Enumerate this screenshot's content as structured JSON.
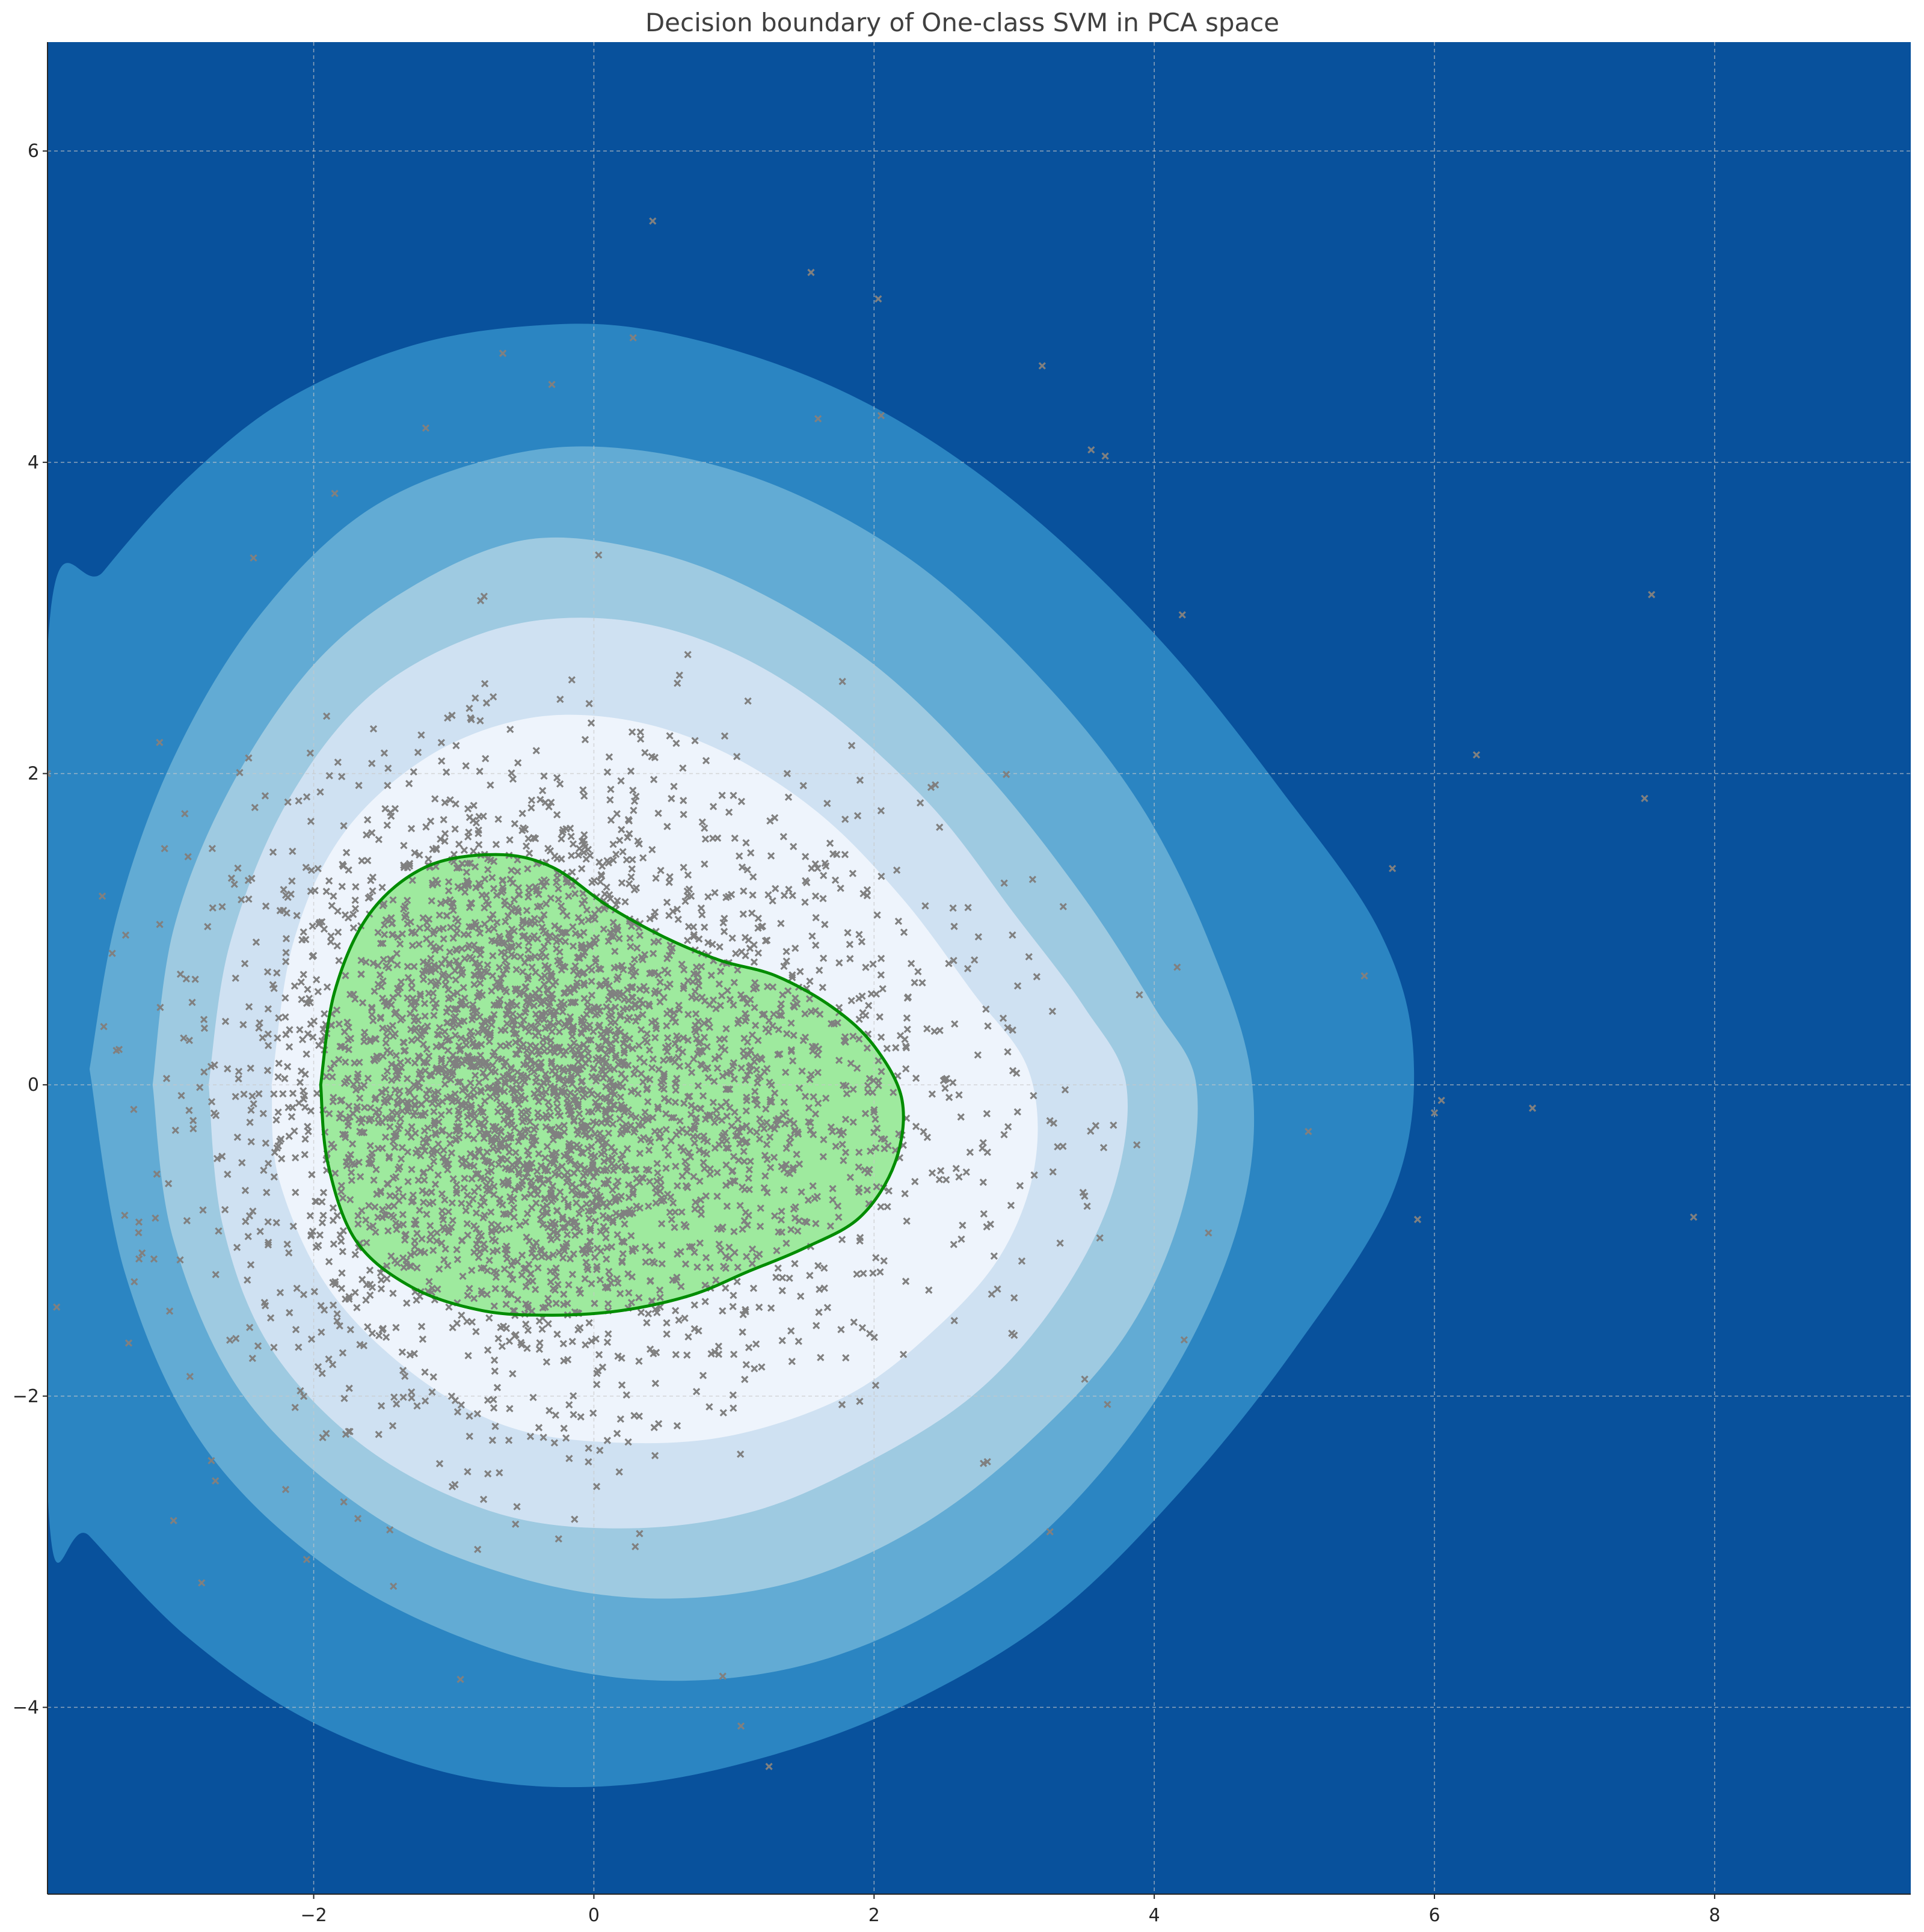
{
  "chart_data": {
    "type": "contour",
    "title": "Decision boundary of One-class SVM in PCA space",
    "xlabel": "",
    "ylabel": "",
    "xlim": [
      -3.9,
      9.4
    ],
    "ylim": [
      -5.2,
      6.7
    ],
    "xticks": [
      -2,
      0,
      2,
      4,
      6,
      8
    ],
    "yticks": [
      -4,
      -2,
      0,
      2,
      4,
      6
    ],
    "xtick_labels": [
      "−2",
      "0",
      "2",
      "4",
      "6",
      "8"
    ],
    "ytick_labels": [
      "−4",
      "−2",
      "0",
      "2",
      "4",
      "6"
    ],
    "grid": true,
    "legend": "none",
    "colors": {
      "background": "#08519c",
      "levels": [
        "#2b85c2",
        "#62abd4",
        "#9ecae1",
        "#cfe1f2",
        "#eef4fc"
      ],
      "inlier_fill": "#9eea9e",
      "boundary_line": "#008c00",
      "points": "#808080",
      "grid": "#c8c8c8"
    },
    "contour_levels": [
      {
        "level": 1,
        "x": [
          -3.9,
          -3.5,
          -2.9,
          -2.2,
          -1.3,
          -0.4,
          0.4,
          1.4,
          2.3,
          3.2,
          4.1,
          4.9,
          5.6,
          5.85,
          5.7,
          5.0,
          4.2,
          3.3,
          2.3,
          1.3,
          0.2,
          -0.9,
          -2.0,
          -2.9,
          -3.6,
          -3.9
        ],
        "y": [
          2.8,
          3.3,
          3.9,
          4.4,
          4.75,
          4.88,
          4.85,
          4.6,
          4.2,
          3.6,
          2.8,
          1.9,
          1.0,
          0.2,
          -0.7,
          -1.7,
          -2.6,
          -3.4,
          -3.95,
          -4.3,
          -4.5,
          -4.45,
          -4.1,
          -3.55,
          -2.9,
          -2.6
        ]
      },
      {
        "level": 2,
        "x": [
          -3.6,
          -3.4,
          -3.0,
          -2.4,
          -1.6,
          -0.6,
          0.3,
          1.3,
          2.3,
          3.2,
          3.9,
          4.4,
          4.7,
          4.6,
          4.1,
          3.3,
          2.4,
          1.4,
          0.3,
          -0.8,
          -1.9,
          -2.8,
          -3.35,
          -3.6
        ],
        "y": [
          0.1,
          1.1,
          2.1,
          3.0,
          3.7,
          4.05,
          4.08,
          3.85,
          3.35,
          2.6,
          1.8,
          0.9,
          0.0,
          -0.9,
          -1.9,
          -2.8,
          -3.4,
          -3.75,
          -3.82,
          -3.6,
          -3.1,
          -2.3,
          -1.2,
          0.1
        ]
      },
      {
        "level": 3,
        "x": [
          -3.15,
          -3.0,
          -2.6,
          -2.0,
          -1.3,
          -0.5,
          0.3,
          1.1,
          2.0,
          2.8,
          3.5,
          4.0,
          4.3,
          4.2,
          3.8,
          3.1,
          2.3,
          1.4,
          0.4,
          -0.6,
          -1.6,
          -2.5,
          -3.0,
          -3.15
        ],
        "y": [
          0.0,
          1.0,
          1.9,
          2.7,
          3.2,
          3.5,
          3.45,
          3.2,
          2.7,
          2.0,
          1.2,
          0.5,
          0.0,
          -0.8,
          -1.6,
          -2.3,
          -2.85,
          -3.2,
          -3.3,
          -3.15,
          -2.75,
          -2.0,
          -1.0,
          0.0
        ]
      },
      {
        "level": 4,
        "x": [
          -2.75,
          -2.6,
          -2.2,
          -1.6,
          -0.8,
          0.0,
          0.8,
          1.6,
          2.4,
          3.0,
          3.5,
          3.8,
          3.7,
          3.3,
          2.7,
          1.9,
          1.1,
          0.2,
          -0.7,
          -1.6,
          -2.3,
          -2.65,
          -2.75
        ],
        "y": [
          0.0,
          0.9,
          1.8,
          2.5,
          2.9,
          3.0,
          2.85,
          2.45,
          1.8,
          1.1,
          0.5,
          0.0,
          -0.7,
          -1.4,
          -2.0,
          -2.45,
          -2.75,
          -2.85,
          -2.75,
          -2.35,
          -1.7,
          -0.9,
          0.0
        ]
      },
      {
        "level": 5,
        "x": [
          -2.3,
          -2.15,
          -1.8,
          -1.2,
          -0.5,
          0.2,
          0.9,
          1.6,
          2.2,
          2.7,
          3.1,
          3.15,
          2.9,
          2.4,
          1.8,
          1.0,
          0.2,
          -0.6,
          -1.3,
          -1.9,
          -2.25,
          -2.3
        ],
        "y": [
          0.0,
          0.9,
          1.6,
          2.1,
          2.35,
          2.35,
          2.15,
          1.75,
          1.2,
          0.6,
          0.1,
          -0.5,
          -1.1,
          -1.6,
          -2.0,
          -2.25,
          -2.3,
          -2.2,
          -1.85,
          -1.3,
          -0.6,
          0.0
        ]
      }
    ],
    "decision_boundary": {
      "label": "",
      "x": [
        -1.95,
        -1.85,
        -1.6,
        -1.2,
        -0.7,
        -0.3,
        0.1,
        0.5,
        0.9,
        1.3,
        1.7,
        2.0,
        2.2,
        2.15,
        1.9,
        1.5,
        1.1,
        0.7,
        0.2,
        -0.3,
        -0.8,
        -1.3,
        -1.7,
        -1.9,
        -1.95
      ],
      "y": [
        0.0,
        0.6,
        1.1,
        1.4,
        1.48,
        1.4,
        1.15,
        0.95,
        0.8,
        0.7,
        0.5,
        0.25,
        -0.1,
        -0.5,
        -0.85,
        -1.05,
        -1.2,
        -1.35,
        -1.45,
        -1.48,
        -1.45,
        -1.3,
        -1.0,
        -0.5,
        0.0
      ]
    },
    "outliers": {
      "x": [
        0.42,
        1.55,
        2.03,
        0.28,
        -0.65,
        -0.3,
        3.2,
        3.55,
        3.65,
        7.55,
        6.3,
        7.5,
        5.7,
        6.0,
        6.05,
        6.7,
        7.85,
        -3.25,
        -2.8,
        -2.05,
        -2.2,
        1.05,
        1.25,
        0.92,
        -3.0,
        -3.1,
        1.6,
        2.05,
        -1.2,
        -1.85,
        4.2,
        5.5,
        5.1
      ],
      "y": [
        5.55,
        5.22,
        5.05,
        4.8,
        4.7,
        4.5,
        4.62,
        4.08,
        4.04,
        3.15,
        2.12,
        1.84,
        1.39,
        -0.18,
        -0.1,
        -0.15,
        -0.85,
        -0.95,
        -3.2,
        -3.05,
        -2.6,
        -4.12,
        -4.38,
        -3.8,
        -2.8,
        2.2,
        4.28,
        4.3,
        4.22,
        3.8,
        3.02,
        0.7,
        -0.3
      ]
    },
    "scatter_note_count": 4000
  }
}
